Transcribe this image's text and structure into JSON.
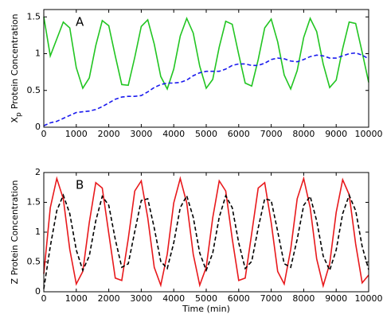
{
  "chart_data": [
    {
      "type": "line",
      "annotation": "A",
      "ylabel": "X",
      "ylabel_subscript": "p",
      "ylabel_rest": "Protein Concentration",
      "x": [
        0,
        200,
        400,
        600,
        800,
        1000,
        1200,
        1400,
        1600,
        1800,
        2000,
        2200,
        2400,
        2600,
        2800,
        3000,
        3200,
        3400,
        3600,
        3800,
        4000,
        4200,
        4400,
        4600,
        4800,
        5000,
        5200,
        5400,
        5600,
        5800,
        6000,
        6200,
        6400,
        6600,
        6800,
        7000,
        7200,
        7400,
        7600,
        7800,
        8000,
        8200,
        8400,
        8600,
        8800,
        9000,
        9200,
        9400,
        9600,
        9800,
        10000
      ],
      "series": [
        {
          "color": "#22c522",
          "linestyle": "solid",
          "values": [
            1.5,
            0.97,
            1.2,
            1.43,
            1.35,
            0.81,
            0.53,
            0.67,
            1.11,
            1.45,
            1.38,
            0.97,
            0.58,
            0.57,
            0.95,
            1.37,
            1.46,
            1.13,
            0.69,
            0.52,
            0.79,
            1.24,
            1.48,
            1.28,
            0.83,
            0.53,
            0.65,
            1.09,
            1.44,
            1.4,
            0.99,
            0.6,
            0.56,
            0.92,
            1.35,
            1.47,
            1.16,
            0.71,
            0.52,
            0.77,
            1.22,
            1.48,
            1.3,
            0.86,
            0.54,
            0.64,
            1.07,
            1.43,
            1.41,
            1.02,
            0.61
          ]
        },
        {
          "color": "#1a1aee",
          "linestyle": "dashed",
          "values": [
            0.02,
            0.06,
            0.08,
            0.12,
            0.16,
            0.2,
            0.21,
            0.22,
            0.24,
            0.28,
            0.33,
            0.38,
            0.41,
            0.42,
            0.42,
            0.43,
            0.48,
            0.54,
            0.58,
            0.6,
            0.6,
            0.61,
            0.64,
            0.7,
            0.74,
            0.76,
            0.76,
            0.76,
            0.79,
            0.84,
            0.86,
            0.86,
            0.84,
            0.84,
            0.87,
            0.92,
            0.94,
            0.93,
            0.9,
            0.89,
            0.92,
            0.96,
            0.98,
            0.97,
            0.94,
            0.94,
            0.97,
            1.0,
            1.01,
            0.98,
            0.93
          ]
        }
      ],
      "xlim": [
        0,
        10000
      ],
      "xticks": [
        0,
        1000,
        2000,
        3000,
        4000,
        5000,
        6000,
        7000,
        8000,
        9000,
        10000
      ],
      "ylim": [
        0,
        1.6
      ],
      "yticks": [
        0,
        0.5,
        1,
        1.5
      ]
    },
    {
      "type": "line",
      "annotation": "B",
      "ylabel": "Z Protein Concentration",
      "xlabel": "Time (min)",
      "x": [
        0,
        200,
        400,
        600,
        800,
        1000,
        1200,
        1400,
        1600,
        1800,
        2000,
        2200,
        2400,
        2600,
        2800,
        3000,
        3200,
        3400,
        3600,
        3800,
        4000,
        4200,
        4400,
        4600,
        4800,
        5000,
        5200,
        5400,
        5600,
        5800,
        6000,
        6200,
        6400,
        6600,
        6800,
        7000,
        7200,
        7400,
        7600,
        7800,
        8000,
        8200,
        8400,
        8600,
        8800,
        9000,
        9200,
        9400,
        9600,
        9800,
        10000
      ],
      "series": [
        {
          "color": "#e8191c",
          "linestyle": "solid",
          "values": [
            0.3,
            1.41,
            1.9,
            1.56,
            0.71,
            0.13,
            0.34,
            1.16,
            1.83,
            1.74,
            0.98,
            0.23,
            0.19,
            0.89,
            1.69,
            1.86,
            1.24,
            0.41,
            0.11,
            0.63,
            1.49,
            1.9,
            1.49,
            0.63,
            0.11,
            0.41,
            1.24,
            1.86,
            1.69,
            0.89,
            0.19,
            0.23,
            0.98,
            1.74,
            1.83,
            1.16,
            0.34,
            0.13,
            0.71,
            1.56,
            1.9,
            1.41,
            0.55,
            0.1,
            0.47,
            1.33,
            1.88,
            1.63,
            0.8,
            0.15,
            0.28
          ]
        },
        {
          "color": "#000000",
          "linestyle": "dashed",
          "values": [
            0.05,
            0.76,
            1.36,
            1.62,
            1.31,
            0.7,
            0.36,
            0.6,
            1.19,
            1.6,
            1.45,
            0.88,
            0.41,
            0.47,
            1.01,
            1.53,
            1.56,
            1.07,
            0.51,
            0.39,
            0.82,
            1.41,
            1.61,
            1.25,
            0.65,
            0.36,
            0.65,
            1.25,
            1.61,
            1.41,
            0.82,
            0.39,
            0.51,
            1.07,
            1.56,
            1.53,
            1.01,
            0.47,
            0.41,
            0.88,
            1.45,
            1.6,
            1.19,
            0.6,
            0.36,
            0.7,
            1.31,
            1.62,
            1.36,
            0.76,
            0.37
          ]
        }
      ],
      "xlim": [
        0,
        10000
      ],
      "xticks": [
        0,
        1000,
        2000,
        3000,
        4000,
        5000,
        6000,
        7000,
        8000,
        9000,
        10000
      ],
      "ylim": [
        0,
        2
      ],
      "yticks": [
        0,
        0.5,
        1,
        1.5,
        2
      ]
    }
  ]
}
